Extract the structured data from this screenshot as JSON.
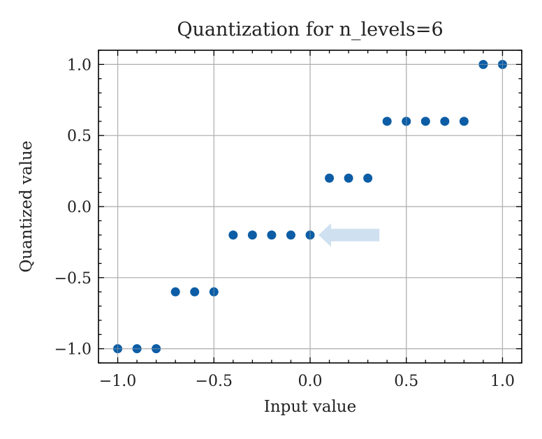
{
  "chart_data": {
    "type": "scatter",
    "title": "Quantization for n_levels=6",
    "xlabel": "Input value",
    "ylabel": "Quantized value",
    "xlim": [
      -1.1,
      1.1
    ],
    "ylim": [
      -1.1,
      1.1
    ],
    "xticks": [
      -1.0,
      -0.5,
      0.0,
      0.5,
      1.0
    ],
    "yticks": [
      -1.0,
      -0.5,
      0.0,
      0.5,
      1.0
    ],
    "xtick_labels": [
      "−1.0",
      "−0.5",
      "0.0",
      "0.5",
      "1.0"
    ],
    "ytick_labels": [
      "−1.0",
      "−0.5",
      "0.0",
      "0.5",
      "1.0"
    ],
    "grid": true,
    "series": [
      {
        "color": "#0c5da5",
        "x": [
          -1.0,
          -0.9,
          -0.8,
          -0.7,
          -0.6,
          -0.5,
          -0.4,
          -0.3,
          -0.2,
          -0.1,
          0.0,
          0.1,
          0.2,
          0.3,
          0.4,
          0.5,
          0.6,
          0.7,
          0.8,
          0.9,
          1.0
        ],
        "y": [
          -1.0,
          -1.0,
          -1.0,
          -0.6,
          -0.6,
          -0.6,
          -0.2,
          -0.2,
          -0.2,
          -0.2,
          -0.2,
          0.2,
          0.2,
          0.2,
          0.6,
          0.6,
          0.6,
          0.6,
          0.6,
          1.0,
          1.0
        ]
      }
    ],
    "annotations": [
      {
        "type": "arrow",
        "color": "#cfe0f1",
        "points_to": [
          0.0,
          -0.2
        ],
        "from": [
          0.36,
          -0.2
        ]
      }
    ]
  }
}
